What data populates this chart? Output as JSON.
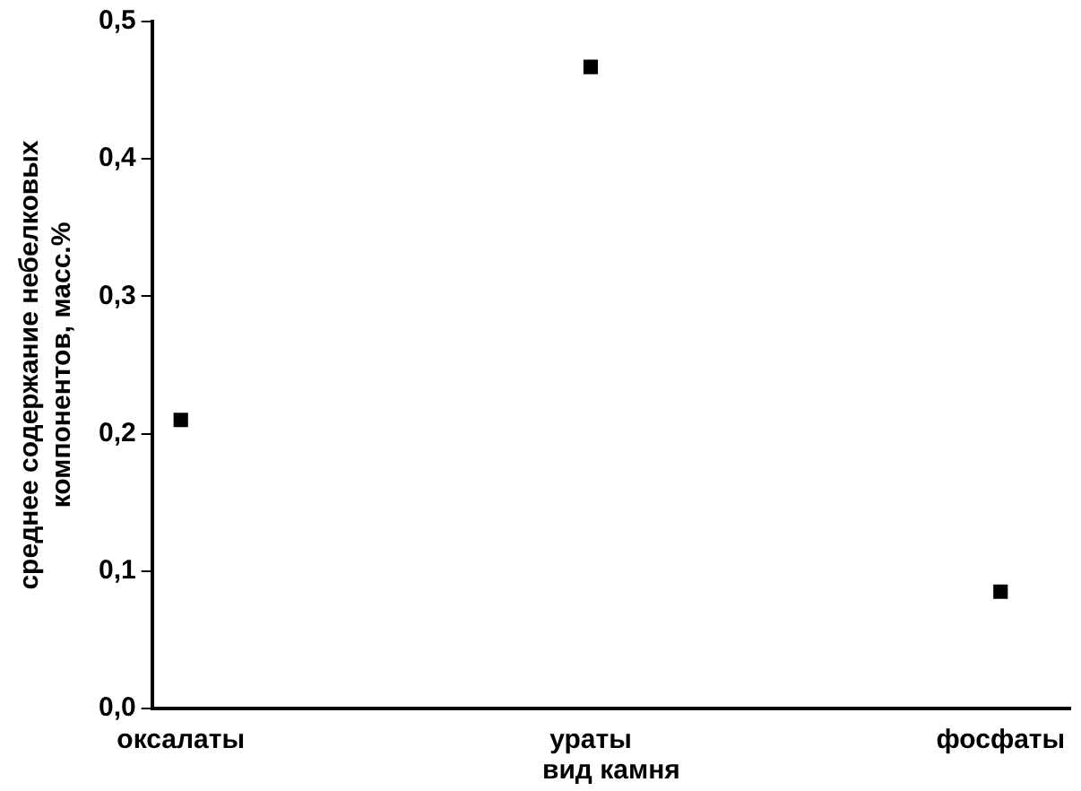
{
  "chart_data": {
    "type": "scatter",
    "categories": [
      "оксалаты",
      "ураты",
      "фосфаты"
    ],
    "series": [
      {
        "color": "#000000",
        "values": [
          0.21,
          0.467,
          0.085
        ]
      }
    ],
    "xlabel": "вид камня",
    "ylabel": "среднее содержание небелковых компонентов, масс.%",
    "ylim": [
      0,
      0.5
    ],
    "yticks": [
      {
        "value": 0,
        "label": "0,0"
      },
      {
        "value": 0.1,
        "label": "0,1"
      },
      {
        "value": 0.2,
        "label": "0,2"
      },
      {
        "value": 0.3,
        "label": "0,3"
      },
      {
        "value": 0.4,
        "label": "0,4"
      },
      {
        "value": 0.5,
        "label": "0,5"
      }
    ],
    "grid": false,
    "legend": false,
    "marker": "square"
  }
}
